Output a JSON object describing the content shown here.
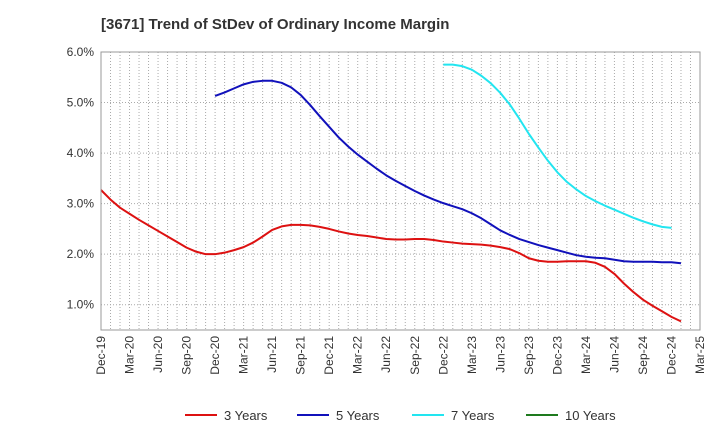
{
  "chart_data": {
    "type": "line",
    "title": "[3671]  Trend of StDev of Ordinary Income Margin",
    "xlabel": "",
    "ylabel": "",
    "x_ticks": [
      "Dec-19",
      "Mar-20",
      "Jun-20",
      "Sep-20",
      "Dec-20",
      "Mar-21",
      "Jun-21",
      "Sep-21",
      "Dec-21",
      "Mar-22",
      "Jun-22",
      "Sep-22",
      "Dec-22",
      "Mar-23",
      "Jun-23",
      "Sep-23",
      "Dec-23",
      "Mar-24",
      "Jun-24",
      "Sep-24",
      "Dec-24",
      "Mar-25"
    ],
    "y_ticks": [
      "1.0%",
      "2.0%",
      "3.0%",
      "4.0%",
      "5.0%",
      "6.0%"
    ],
    "ylim": [
      0.5,
      6.0
    ],
    "y_unit": "%",
    "grid": true,
    "legend_position": "bottom",
    "series": [
      {
        "name": "3 Years",
        "color": "#dd1111",
        "points": [
          [
            "Dec-19",
            3.27
          ],
          [
            "Jan-20",
            3.08
          ],
          [
            "Feb-20",
            2.92
          ],
          [
            "Mar-20",
            2.8
          ],
          [
            "Apr-20",
            2.68
          ],
          [
            "May-20",
            2.57
          ],
          [
            "Jun-20",
            2.46
          ],
          [
            "Jul-20",
            2.35
          ],
          [
            "Aug-20",
            2.24
          ],
          [
            "Sep-20",
            2.13
          ],
          [
            "Oct-20",
            2.05
          ],
          [
            "Nov-20",
            2.0
          ],
          [
            "Dec-20",
            2.0
          ],
          [
            "Jan-21",
            2.03
          ],
          [
            "Feb-21",
            2.08
          ],
          [
            "Mar-21",
            2.14
          ],
          [
            "Apr-21",
            2.23
          ],
          [
            "May-21",
            2.35
          ],
          [
            "Jun-21",
            2.48
          ],
          [
            "Jul-21",
            2.55
          ],
          [
            "Aug-21",
            2.58
          ],
          [
            "Sep-21",
            2.58
          ],
          [
            "Oct-21",
            2.57
          ],
          [
            "Nov-21",
            2.54
          ],
          [
            "Dec-21",
            2.5
          ],
          [
            "Jan-22",
            2.45
          ],
          [
            "Feb-22",
            2.41
          ],
          [
            "Mar-22",
            2.38
          ],
          [
            "Apr-22",
            2.36
          ],
          [
            "May-22",
            2.33
          ],
          [
            "Jun-22",
            2.3
          ],
          [
            "Jul-22",
            2.29
          ],
          [
            "Aug-22",
            2.29
          ],
          [
            "Sep-22",
            2.3
          ],
          [
            "Oct-22",
            2.3
          ],
          [
            "Nov-22",
            2.28
          ],
          [
            "Dec-22",
            2.25
          ],
          [
            "Jan-23",
            2.23
          ],
          [
            "Feb-23",
            2.21
          ],
          [
            "Mar-23",
            2.2
          ],
          [
            "Apr-23",
            2.19
          ],
          [
            "May-23",
            2.17
          ],
          [
            "Jun-23",
            2.14
          ],
          [
            "Jul-23",
            2.1
          ],
          [
            "Aug-23",
            2.02
          ],
          [
            "Sep-23",
            1.92
          ],
          [
            "Oct-23",
            1.87
          ],
          [
            "Nov-23",
            1.85
          ],
          [
            "Dec-23",
            1.85
          ],
          [
            "Jan-24",
            1.86
          ],
          [
            "Feb-24",
            1.86
          ],
          [
            "Mar-24",
            1.86
          ],
          [
            "Apr-24",
            1.83
          ],
          [
            "May-24",
            1.75
          ],
          [
            "Jun-24",
            1.61
          ],
          [
            "Jul-24",
            1.42
          ],
          [
            "Aug-24",
            1.25
          ],
          [
            "Sep-24",
            1.1
          ],
          [
            "Oct-24",
            0.98
          ],
          [
            "Nov-24",
            0.87
          ],
          [
            "Dec-24",
            0.76
          ],
          [
            "Jan-25",
            0.67
          ]
        ]
      },
      {
        "name": "5 Years",
        "color": "#1111bb",
        "points": [
          [
            "Dec-20",
            5.13
          ],
          [
            "Jan-21",
            5.2
          ],
          [
            "Feb-21",
            5.28
          ],
          [
            "Mar-21",
            5.36
          ],
          [
            "Apr-21",
            5.41
          ],
          [
            "May-21",
            5.43
          ],
          [
            "Jun-21",
            5.43
          ],
          [
            "Jul-21",
            5.39
          ],
          [
            "Aug-21",
            5.3
          ],
          [
            "Sep-21",
            5.15
          ],
          [
            "Oct-21",
            4.95
          ],
          [
            "Nov-21",
            4.73
          ],
          [
            "Dec-21",
            4.52
          ],
          [
            "Jan-22",
            4.31
          ],
          [
            "Feb-22",
            4.13
          ],
          [
            "Mar-22",
            3.97
          ],
          [
            "Apr-22",
            3.83
          ],
          [
            "May-22",
            3.69
          ],
          [
            "Jun-22",
            3.56
          ],
          [
            "Jul-22",
            3.45
          ],
          [
            "Aug-22",
            3.35
          ],
          [
            "Sep-22",
            3.25
          ],
          [
            "Oct-22",
            3.16
          ],
          [
            "Nov-22",
            3.08
          ],
          [
            "Dec-22",
            3.01
          ],
          [
            "Jan-23",
            2.95
          ],
          [
            "Feb-23",
            2.89
          ],
          [
            "Mar-23",
            2.81
          ],
          [
            "Apr-23",
            2.71
          ],
          [
            "May-23",
            2.59
          ],
          [
            "Jun-23",
            2.47
          ],
          [
            "Jul-23",
            2.38
          ],
          [
            "Aug-23",
            2.3
          ],
          [
            "Sep-23",
            2.24
          ],
          [
            "Oct-23",
            2.18
          ],
          [
            "Nov-23",
            2.13
          ],
          [
            "Dec-23",
            2.08
          ],
          [
            "Jan-24",
            2.03
          ],
          [
            "Feb-24",
            1.98
          ],
          [
            "Mar-24",
            1.95
          ],
          [
            "Apr-24",
            1.93
          ],
          [
            "May-24",
            1.92
          ],
          [
            "Jun-24",
            1.89
          ],
          [
            "Jul-24",
            1.86
          ],
          [
            "Aug-24",
            1.85
          ],
          [
            "Sep-24",
            1.85
          ],
          [
            "Oct-24",
            1.85
          ],
          [
            "Nov-24",
            1.84
          ],
          [
            "Dec-24",
            1.84
          ],
          [
            "Jan-25",
            1.82
          ]
        ]
      },
      {
        "name": "7 Years",
        "color": "#22e5f0",
        "points": [
          [
            "Dec-22",
            5.75
          ],
          [
            "Jan-23",
            5.75
          ],
          [
            "Feb-23",
            5.72
          ],
          [
            "Mar-23",
            5.65
          ],
          [
            "Apr-23",
            5.53
          ],
          [
            "May-23",
            5.38
          ],
          [
            "Jun-23",
            5.19
          ],
          [
            "Jul-23",
            4.96
          ],
          [
            "Aug-23",
            4.68
          ],
          [
            "Sep-23",
            4.38
          ],
          [
            "Oct-23",
            4.11
          ],
          [
            "Nov-23",
            3.85
          ],
          [
            "Dec-23",
            3.62
          ],
          [
            "Jan-24",
            3.43
          ],
          [
            "Feb-24",
            3.28
          ],
          [
            "Mar-24",
            3.15
          ],
          [
            "Apr-24",
            3.05
          ],
          [
            "May-24",
            2.96
          ],
          [
            "Jun-24",
            2.88
          ],
          [
            "Jul-24",
            2.8
          ],
          [
            "Aug-24",
            2.72
          ],
          [
            "Sep-24",
            2.65
          ],
          [
            "Oct-24",
            2.59
          ],
          [
            "Nov-24",
            2.54
          ],
          [
            "Dec-24",
            2.52
          ]
        ]
      },
      {
        "name": "10 Years",
        "color": "#1e7a1e",
        "points": []
      }
    ]
  }
}
